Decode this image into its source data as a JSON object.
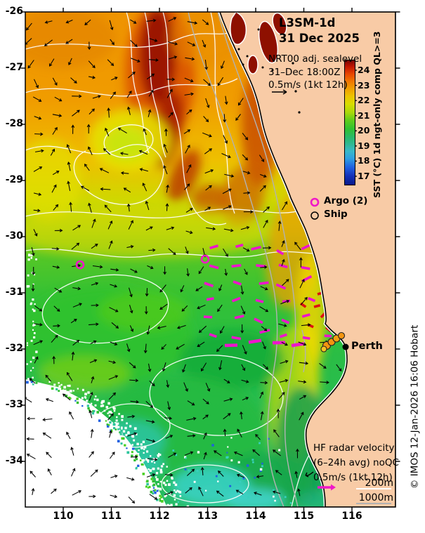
{
  "header": {
    "title_line1": "L3SM-1d",
    "title_line2": "31 Dec 2025"
  },
  "info_block": {
    "line1": "NRT00 adj. sealevel",
    "line2": "31–Dec 18:00Z",
    "line3": "0.5m/s (1kt 12h)"
  },
  "legend": {
    "argo_label": "Argo (2)",
    "ship_label": "Ship"
  },
  "city": {
    "label": "Perth"
  },
  "hf_block": {
    "line1": "HF radar velocity",
    "line2": "(6–24h avg) noQC",
    "line3": "0.5m/s (1kt 12h)",
    "depth1": "200m",
    "depth2": "1000m"
  },
  "colorbar_label": "SST (°C) 1d ngt-only comp QL>=3",
  "copyright": "© IMOS 12-Jan-2026 16:06 Hobart",
  "chart_data": {
    "type": "heatmap",
    "title": "L3SM-1d 31 Dec 2025",
    "subtitle": "NRT00 adj. sealevel 31–Dec 18:00Z, vector scale 0.5m/s (1kt 12h)",
    "x_axis": {
      "ticks": [
        110,
        111,
        112,
        113,
        114,
        115,
        116
      ],
      "range": [
        109.2,
        116.9
      ],
      "units": "degrees East longitude"
    },
    "y_axis": {
      "ticks": [
        -26,
        -27,
        -28,
        -29,
        -30,
        -31,
        -32,
        -33,
        -34
      ],
      "range": [
        -34.8,
        -26.0
      ],
      "units": "degrees latitude"
    },
    "colorbar": {
      "label": "SST (°C) 1d ngt-only comp QL>=3",
      "ticks": [
        24,
        23,
        22,
        21,
        20,
        19,
        18,
        17
      ],
      "range": [
        16.5,
        24.7
      ],
      "colormap": "jet (dark red warm north, blue cold)"
    },
    "legend_entries": [
      {
        "marker": "open-circle-magenta",
        "label": "Argo (2)"
      },
      {
        "marker": "open-circle-black",
        "label": "Ship"
      }
    ],
    "markers": {
      "argo_floats_lon_lat": [
        [
          110.3,
          -30.5
        ],
        [
          112.9,
          -30.4
        ]
      ],
      "perth_lon_lat": [
        115.86,
        -31.95
      ]
    },
    "annotations": {
      "hf_radar": "HF radar velocity (6–24h avg) noQC, scale 0.5m/s (1kt 12h), magenta dashes offshore Perth",
      "isobaths": [
        "200m",
        "1000m"
      ],
      "no_data": "white speckled region in southwest corner"
    },
    "field_summary": "SST off Western Australia: ~24-25°C (orange/dark red) in the north near Shark Bay, ~21-22°C (yellow-green) mid-domain, ~19-21°C (green/cyan) in the south; black arrows show NRT00 adjusted-sealevel velocity; white contours are adjusted sea level; gray lines are 200m/1000m isobaths along the shelf"
  }
}
